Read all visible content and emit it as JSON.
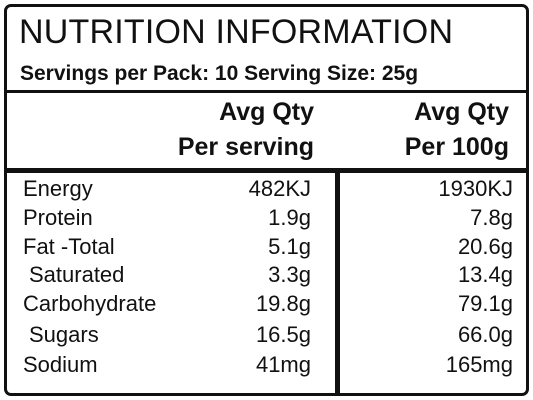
{
  "panel": {
    "title": "NUTRITION INFORMATION",
    "servings_line": "Servings per Pack: 10  Serving Size: 25g"
  },
  "headers": {
    "per_serving": [
      "Avg Qty",
      "Per serving"
    ],
    "per_100g": [
      "Avg Qty",
      "Per 100g"
    ]
  },
  "rows": [
    {
      "name": "Energy",
      "per_serving": "482KJ",
      "per_100g": "1930KJ"
    },
    {
      "name": "Protein",
      "per_serving": "1.9g",
      "per_100g": "7.8g"
    },
    {
      "name": "Fat -Total",
      "per_serving": "5.1g",
      "per_100g": "20.6g"
    },
    {
      "name": "Saturated",
      "per_serving": "3.3g",
      "per_100g": "13.4g"
    },
    {
      "name": "Carbohydrate",
      "per_serving": "19.8g",
      "per_100g": "79.1g"
    },
    {
      "name": "Sugars",
      "per_serving": "16.5g",
      "per_100g": "66.0g"
    },
    {
      "name": "Sodium",
      "per_serving": "41mg",
      "per_100g": "165mg"
    }
  ]
}
